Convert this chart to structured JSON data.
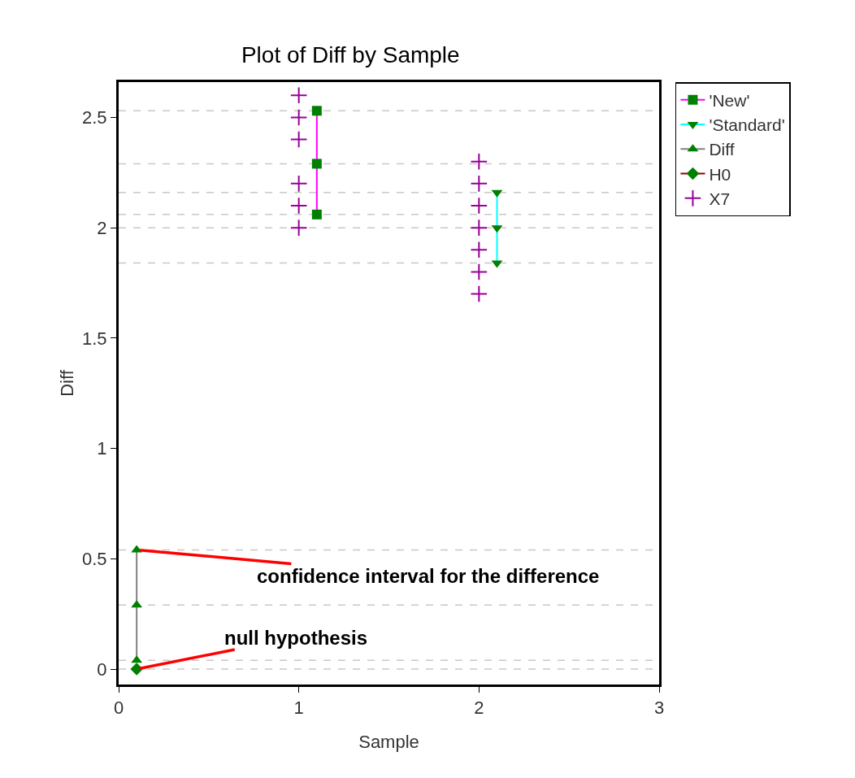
{
  "chart_data": {
    "type": "line",
    "title": "Plot of Diff by Sample",
    "xlabel": "Sample",
    "ylabel": "Diff",
    "xlim": [
      0,
      3
    ],
    "xticks": [
      0,
      1,
      2,
      3
    ],
    "ylim": [
      -0.07,
      2.66
    ],
    "yticks": [
      0,
      0.5,
      1,
      1.5,
      2,
      2.5
    ],
    "grid": false,
    "legend": "top right",
    "series": [
      {
        "name": "'New'",
        "type": "line",
        "marker": "square",
        "color": "#ff00ff",
        "colors": [
          "#008000",
          "#008000",
          "#008000"
        ],
        "x": [
          1.1,
          1.1,
          1.1
        ],
        "values": [
          2.53,
          2.29,
          2.06
        ]
      },
      {
        "name": "'Standard'",
        "type": "line",
        "marker": "triangle-down",
        "color": "#00ffff",
        "colors": [
          "#008000",
          "#008000",
          "#008000"
        ],
        "x": [
          2.1,
          2.1,
          2.1
        ],
        "values": [
          2.16,
          2.0,
          1.84
        ]
      },
      {
        "name": "Diff",
        "type": "line",
        "marker": "triangle",
        "color": "#808080",
        "colors": [
          "#008000",
          "#008000",
          "#008000"
        ],
        "x": [
          0.1,
          0.1,
          0.1
        ],
        "values": [
          0.54,
          0.29,
          0.04
        ]
      },
      {
        "name": "H0",
        "type": "line",
        "marker": "diamond",
        "color": "#8b0000",
        "colors": [
          "#008000"
        ],
        "x": [
          0.1
        ],
        "values": [
          0
        ]
      },
      {
        "name": "X7",
        "type": "scatter",
        "marker": "cross",
        "color": "#990099",
        "x": [
          1,
          1,
          1,
          1,
          1,
          1,
          2,
          2,
          2,
          2,
          2,
          2,
          2
        ],
        "values": [
          2.6,
          2.5,
          2.4,
          2.2,
          2.1,
          2.0,
          2.3,
          2.2,
          2.1,
          2.0,
          1.9,
          1.8,
          1.7
        ]
      }
    ],
    "ref_lines": [
      {
        "axis": "y",
        "value": 2.53,
        "color": "#c8c8c8",
        "line_style": "dashed"
      },
      {
        "axis": "y",
        "value": 2.29,
        "color": "#c8c8c8",
        "line_style": "dashed"
      },
      {
        "axis": "y",
        "value": 2.16,
        "color": "#c8c8c8",
        "line_style": "dashed"
      },
      {
        "axis": "y",
        "value": 2.06,
        "color": "#c8c8c8",
        "line_style": "dashed"
      },
      {
        "axis": "y",
        "value": 2.0,
        "color": "#c8c8c8",
        "line_style": "dashed"
      },
      {
        "axis": "y",
        "value": 1.84,
        "color": "#c8c8c8",
        "line_style": "dashed"
      },
      {
        "axis": "y",
        "value": 0.54,
        "color": "#c8c8c8",
        "line_style": "dashed"
      },
      {
        "axis": "y",
        "value": 0.29,
        "color": "#c8c8c8",
        "line_style": "dashed"
      },
      {
        "axis": "y",
        "value": 0.04,
        "color": "#c8c8c8",
        "line_style": "dashed"
      },
      {
        "axis": "y",
        "value": 0,
        "color": "#c8c8c8",
        "line_style": "dashed"
      }
    ],
    "annotations": [
      {
        "text": "confidence interval for the difference",
        "x": 0.1,
        "y": 0.54
      },
      {
        "text": "null hypothesis",
        "x": 0.1,
        "y": 0
      }
    ]
  }
}
